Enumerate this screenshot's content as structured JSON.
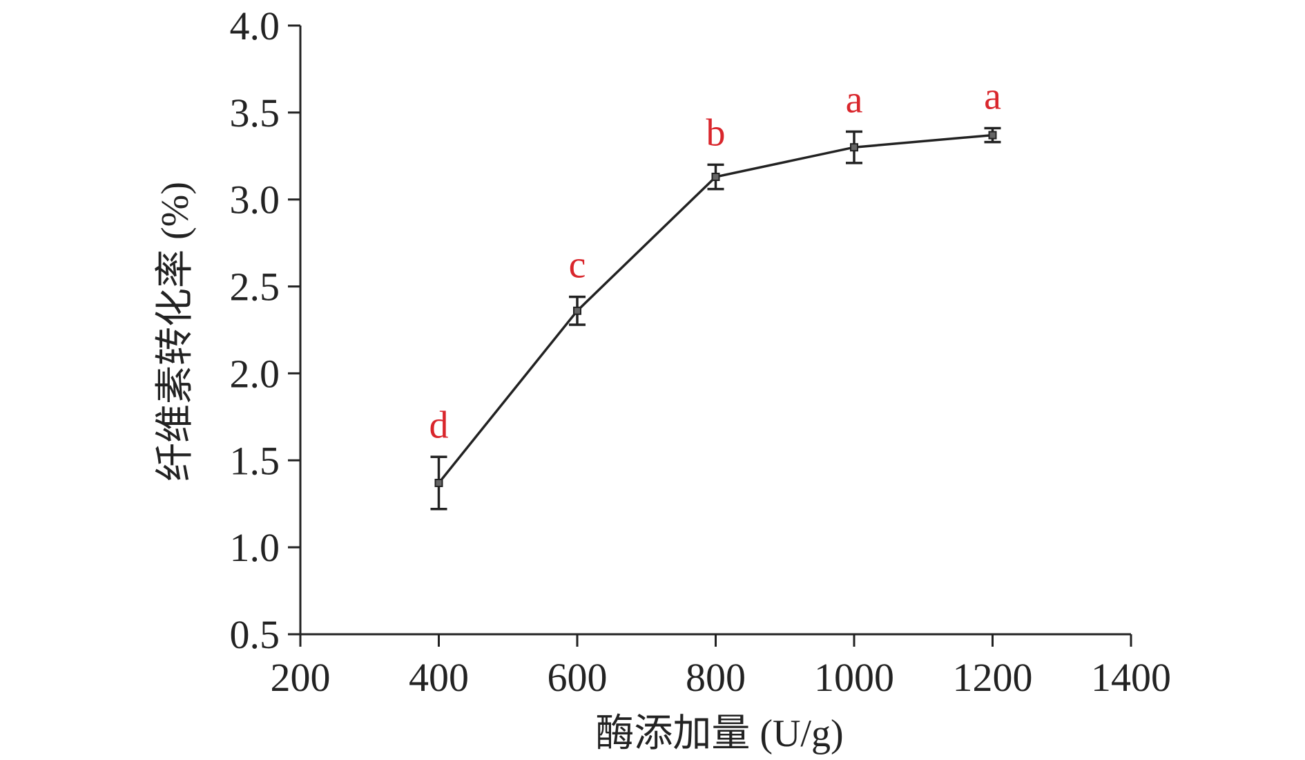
{
  "chart_data": {
    "type": "line",
    "title": "",
    "xlabel": "酶添加量 (U/g)",
    "ylabel": "纤维素转化率 (%)",
    "xlim": [
      200,
      1400
    ],
    "ylim": [
      0.5,
      4.0
    ],
    "xticks": [
      200,
      400,
      600,
      800,
      1000,
      1200,
      1400
    ],
    "yticks": [
      0.5,
      1.0,
      1.5,
      2.0,
      2.5,
      3.0,
      3.5,
      4.0
    ],
    "grid": false,
    "legend": "none",
    "series": [
      {
        "x": [
          400,
          600,
          800,
          1000,
          1200
        ],
        "y": [
          1.37,
          2.36,
          3.13,
          3.3,
          3.37
        ],
        "error": [
          0.15,
          0.08,
          0.07,
          0.09,
          0.04
        ],
        "labels": [
          "d",
          "c",
          "b",
          "a",
          "a"
        ]
      }
    ],
    "colors": {
      "line": "#222222",
      "axis": "#222222",
      "label": "#d9262c"
    }
  }
}
